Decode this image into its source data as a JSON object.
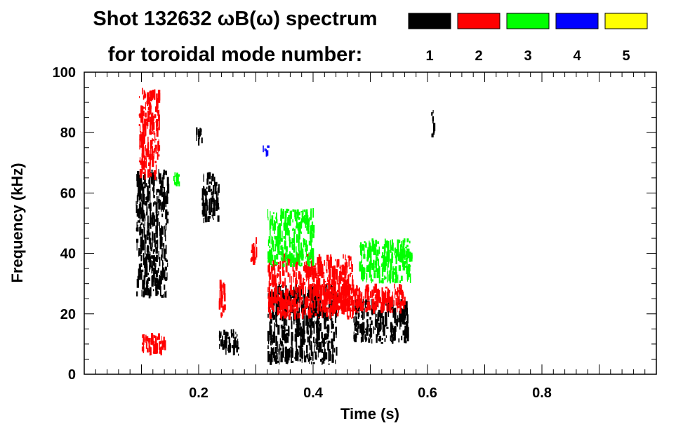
{
  "chart_data": {
    "type": "heatmap",
    "title": "Shot 132632 ωB(ω) spectrum",
    "subtitle": "for toroidal mode number:",
    "xlabel": "Time (s)",
    "ylabel": "Frequency (kHz)",
    "xlim": [
      0.0,
      1.0
    ],
    "ylim": [
      0,
      100
    ],
    "xticks": [
      "0.2",
      "0.4",
      "0.6",
      "0.8"
    ],
    "xtick_values": [
      0.2,
      0.4,
      0.6,
      0.8
    ],
    "yticks": [
      "0",
      "20",
      "40",
      "60",
      "80",
      "100"
    ],
    "ytick_values": [
      0,
      20,
      40,
      60,
      80,
      100
    ],
    "grid": false,
    "legend_position": "top-right",
    "legend": [
      {
        "label": "1",
        "color": "#000000"
      },
      {
        "label": "2",
        "color": "#ff0000"
      },
      {
        "label": "3",
        "color": "#00ff00"
      },
      {
        "label": "4",
        "color": "#0000ff"
      },
      {
        "label": "5",
        "color": "#ffff00"
      }
    ],
    "series": [
      {
        "name": "1",
        "color": "#000000",
        "regions": [
          {
            "x": [
              0.09,
              0.145
            ],
            "y": [
              25,
              68
            ]
          },
          {
            "x": [
              0.205,
              0.235
            ],
            "y": [
              50,
              67
            ]
          },
          {
            "x": [
              0.195,
              0.205
            ],
            "y": [
              75,
              82
            ]
          },
          {
            "x": [
              0.235,
              0.27
            ],
            "y": [
              6,
              15
            ]
          },
          {
            "x": [
              0.32,
              0.44
            ],
            "y": [
              3,
              30
            ]
          },
          {
            "x": [
              0.47,
              0.565
            ],
            "y": [
              10,
              25
            ]
          },
          {
            "x": [
              0.605,
              0.61
            ],
            "y": [
              78,
              88
            ]
          }
        ]
      },
      {
        "name": "2",
        "color": "#ff0000",
        "regions": [
          {
            "x": [
              0.095,
              0.13
            ],
            "y": [
              64,
              95
            ]
          },
          {
            "x": [
              0.1,
              0.14
            ],
            "y": [
              6,
              14
            ]
          },
          {
            "x": [
              0.235,
              0.245
            ],
            "y": [
              18,
              32
            ]
          },
          {
            "x": [
              0.29,
              0.3
            ],
            "y": [
              35,
              46
            ]
          },
          {
            "x": [
              0.32,
              0.47
            ],
            "y": [
              18,
              40
            ]
          },
          {
            "x": [
              0.4,
              0.56
            ],
            "y": [
              20,
              30
            ]
          }
        ]
      },
      {
        "name": "3",
        "color": "#00ff00",
        "regions": [
          {
            "x": [
              0.32,
              0.4
            ],
            "y": [
              35,
              55
            ]
          },
          {
            "x": [
              0.48,
              0.57
            ],
            "y": [
              30,
              45
            ]
          },
          {
            "x": [
              0.155,
              0.165
            ],
            "y": [
              62,
              68
            ]
          }
        ]
      },
      {
        "name": "4",
        "color": "#0000ff",
        "regions": [
          {
            "x": [
              0.31,
              0.32
            ],
            "y": [
              72,
              76
            ]
          }
        ]
      },
      {
        "name": "5",
        "color": "#ffff00",
        "regions": []
      }
    ]
  }
}
